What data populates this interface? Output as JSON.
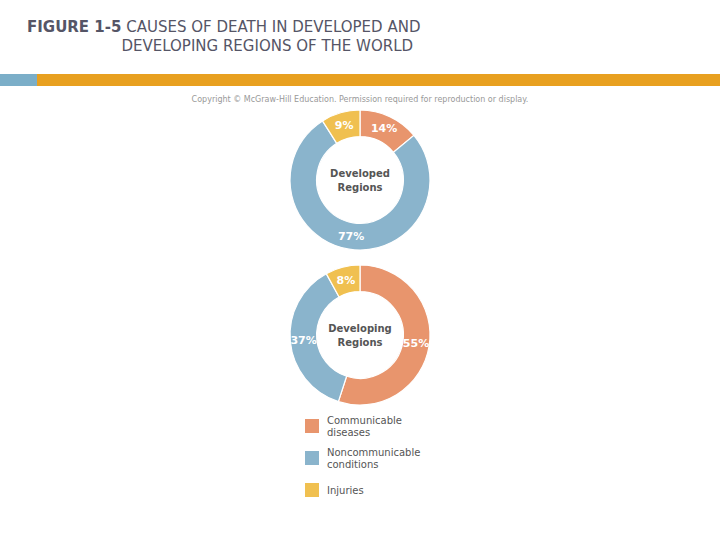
{
  "title": "FIGURE 1-5",
  "subtitle": " CAUSES OF DEATH IN DEVELOPED AND\nDEVELOPING REGIONS OF THE WORLD",
  "annotations": [
    "Copyright © McGraw-Hill Education. Permission required for reproduction or display."
  ],
  "chart_data": [
    {
      "type": "pie",
      "title": "Developed\nRegions",
      "values": [
        14,
        77,
        9
      ],
      "value_labels": [
        "14%",
        "77%",
        "9%"
      ],
      "colors": [
        "#e8956d",
        "#8ab4cc",
        "#f0c050"
      ],
      "data_labels": true
    },
    {
      "type": "pie",
      "title": "Developing\nRegions",
      "categories": [
        "Communicable\ndiseases",
        "Noncommunicable\nconditions",
        "Injuries"
      ],
      "values": [
        55,
        37,
        8
      ],
      "value_labels": [
        "55%",
        "37%",
        "8%"
      ],
      "colors": [
        "#e8956d",
        "#8ab4cc",
        "#f0c050"
      ],
      "data_labels": true,
      "legend": "bottom"
    }
  ]
}
